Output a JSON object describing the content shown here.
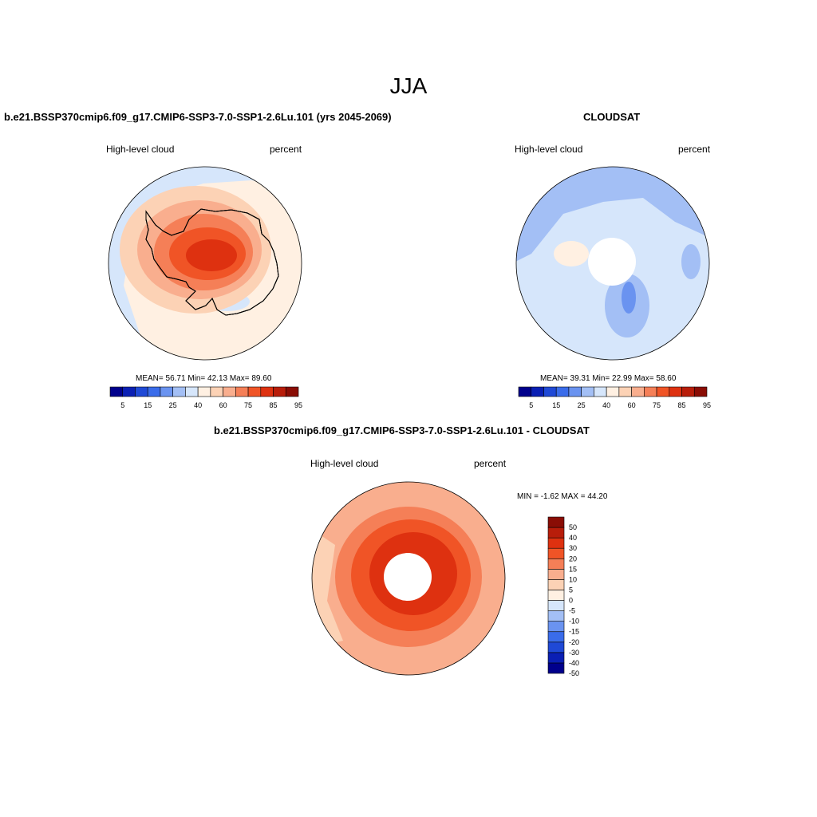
{
  "figure": {
    "season": "JJA"
  },
  "panels": [
    {
      "title": "b.e21.BSSP370cmip6.f09_g17.CMIP6-SSP3-7.0-SSP1-2.6Lu.101 (yrs 2045-2069)",
      "left_label": "High-level cloud",
      "right_label": "percent",
      "stats": "MEAN=  56.71  Min=  42.13  Max=  89.60"
    },
    {
      "title": "CLOUDSAT",
      "left_label": "High-level cloud",
      "right_label": "percent",
      "stats": "MEAN=  39.31  Min=  22.99  Max=  58.60"
    },
    {
      "title": "b.e21.BSSP370cmip6.f09_g17.CMIP6-SSP3-7.0-SSP1-2.6Lu.101 - CLOUDSAT",
      "left_label": "High-level cloud",
      "right_label": "percent",
      "stats": "MIN =  -1.62 MAX =  44.20"
    }
  ],
  "colors": {
    "abs_scale": [
      "#00008c",
      "#0a1fb4",
      "#1f49d6",
      "#3a6cea",
      "#6a93f0",
      "#a3bff5",
      "#d6e6fb",
      "#fff0e2",
      "#fcd2b5",
      "#f9ae8e",
      "#f57f57",
      "#f05426",
      "#de3110",
      "#b81d0a",
      "#8a0d05"
    ],
    "diff_scale": [
      "#00008c",
      "#0a1fb4",
      "#1f49d6",
      "#3a6cea",
      "#6a93f0",
      "#a3bff5",
      "#d6e6fb",
      "#fff0e2",
      "#fcd2b5",
      "#f9ae8e",
      "#f57f57",
      "#f05426",
      "#de3110",
      "#b81d0a",
      "#8a0d05"
    ]
  },
  "chart_data": [
    {
      "type": "heatmap",
      "projection": "south polar stereographic",
      "title": "b.e21.BSSP370cmip6.f09_g17.CMIP6-SSP3-7.0-SSP1-2.6Lu.101 (yrs 2045-2069)",
      "variable": "High-level cloud",
      "units": "percent",
      "stats": {
        "mean": 56.71,
        "min": 42.13,
        "max": 89.6
      },
      "colorbar_levels": [
        5,
        10,
        15,
        20,
        25,
        30,
        40,
        50,
        60,
        70,
        75,
        80,
        85,
        90,
        95
      ],
      "colorbar_tick_labels": [
        "5",
        "15",
        "25",
        "40",
        "60",
        "75",
        "85",
        "95"
      ],
      "colorbar_orientation": "horizontal"
    },
    {
      "type": "heatmap",
      "projection": "south polar stereographic",
      "title": "CLOUDSAT",
      "variable": "High-level cloud",
      "units": "percent",
      "stats": {
        "mean": 39.31,
        "min": 22.99,
        "max": 58.6
      },
      "missing_data_polar_cap": true,
      "colorbar_levels": [
        5,
        10,
        15,
        20,
        25,
        30,
        40,
        50,
        60,
        70,
        75,
        80,
        85,
        90,
        95
      ],
      "colorbar_tick_labels": [
        "5",
        "15",
        "25",
        "40",
        "60",
        "75",
        "85",
        "95"
      ],
      "colorbar_orientation": "horizontal"
    },
    {
      "type": "heatmap",
      "projection": "south polar stereographic",
      "title": "b.e21.BSSP370cmip6.f09_g17.CMIP6-SSP3-7.0-SSP1-2.6Lu.101 - CLOUDSAT",
      "variable": "High-level cloud",
      "units": "percent",
      "stats": {
        "min": -1.62,
        "max": 44.2
      },
      "missing_data_polar_cap": true,
      "colorbar_levels": [
        -50,
        -40,
        -30,
        -20,
        -15,
        -10,
        -5,
        0,
        5,
        10,
        15,
        20,
        30,
        40,
        50
      ],
      "colorbar_tick_labels": [
        "50",
        "40",
        "30",
        "20",
        "15",
        "10",
        "5",
        "0",
        "-5",
        "-10",
        "-15",
        "-20",
        "-30",
        "-40",
        "-50"
      ],
      "colorbar_orientation": "vertical"
    }
  ]
}
